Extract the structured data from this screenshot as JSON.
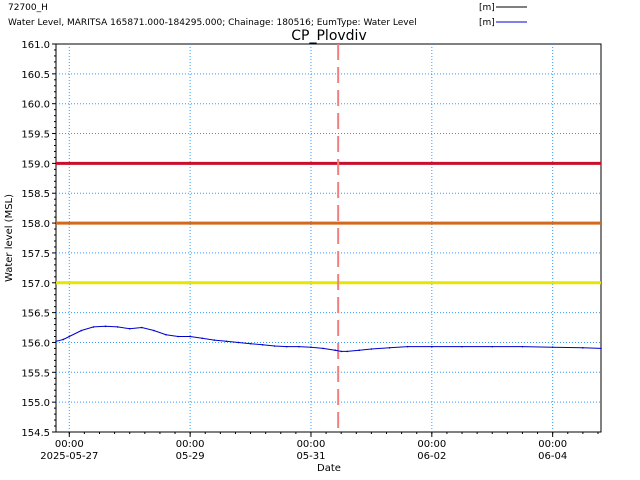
{
  "chart_data": {
    "type": "line",
    "title": "CP_Plovdiv",
    "xlabel": "Date",
    "ylabel": "Water level (MSL)",
    "ylim": [
      154.5,
      161.0
    ],
    "xlim_days": [
      -0.22,
      8.8
    ],
    "y_ticks": [
      "154.5",
      "155.0",
      "155.5",
      "156.0",
      "156.5",
      "157.0",
      "157.5",
      "158.0",
      "158.5",
      "159.0",
      "159.5",
      "160.0",
      "160.5",
      "161.0"
    ],
    "x_ticks": [
      {
        "day": 0,
        "time": "00:00",
        "date": "2025-05-27"
      },
      {
        "day": 2,
        "time": "00:00",
        "date": "05-29"
      },
      {
        "day": 4,
        "time": "00:00",
        "date": "05-31"
      },
      {
        "day": 6,
        "time": "00:00",
        "date": "06-02"
      },
      {
        "day": 8,
        "time": "00:00",
        "date": "06-04"
      }
    ],
    "grid": true,
    "legend": [
      {
        "name": "72700_H",
        "unit": "[m]",
        "color": "#000000"
      },
      {
        "name": "Water Level, MARITSA 165871.000-184295.000; Chainage: 180516; EumType: Water Level",
        "unit": "[m]",
        "color": "#0000cc"
      }
    ],
    "thresholds": [
      {
        "value": 159.0,
        "color": "#c8102e"
      },
      {
        "value": 158.0,
        "color": "#d2691e"
      },
      {
        "value": 157.0,
        "color": "#e6e600"
      }
    ],
    "current_time_day": 4.45,
    "current_time_color": "#f08080",
    "series": [
      {
        "name": "Water Level, MARITSA 165871.000-184295.000; Chainage: 180516; EumType: Water Level",
        "color": "#0000cc",
        "x_day": [
          -0.22,
          -0.1,
          0.0,
          0.2,
          0.4,
          0.6,
          0.8,
          1.0,
          1.2,
          1.4,
          1.6,
          1.8,
          2.0,
          2.2,
          2.4,
          2.6,
          2.8,
          3.0,
          3.2,
          3.4,
          3.6,
          3.8,
          4.0,
          4.2,
          4.4,
          4.5,
          4.6,
          4.8,
          5.0,
          5.3,
          5.6,
          6.0,
          6.5,
          7.0,
          7.5,
          8.0,
          8.5,
          8.8
        ],
        "y": [
          156.02,
          156.05,
          156.1,
          156.2,
          156.26,
          156.27,
          156.26,
          156.23,
          156.25,
          156.2,
          156.13,
          156.1,
          156.1,
          156.07,
          156.04,
          156.02,
          156.0,
          155.98,
          155.96,
          155.94,
          155.93,
          155.93,
          155.92,
          155.9,
          155.87,
          155.85,
          155.85,
          155.87,
          155.89,
          155.91,
          155.93,
          155.93,
          155.93,
          155.93,
          155.93,
          155.92,
          155.91,
          155.9
        ]
      }
    ]
  }
}
